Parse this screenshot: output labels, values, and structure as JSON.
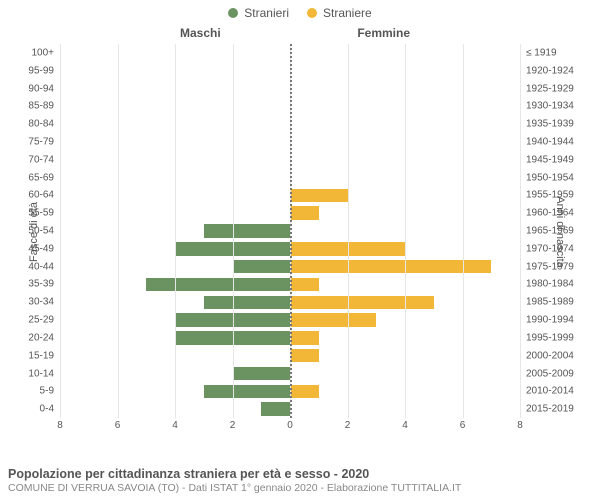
{
  "legend": {
    "male_label": "Stranieri",
    "female_label": "Straniere"
  },
  "headers": {
    "male": "Maschi",
    "female": "Femmine"
  },
  "y_labels": {
    "left": "Fasce di età",
    "right": "Anni di nascita"
  },
  "chart": {
    "type": "population-pyramid",
    "male_color": "#6b9362",
    "female_color": "#f2b736",
    "grid_color": "#e6e6e6",
    "center_line_color": "#777777",
    "background_color": "#ffffff",
    "text_color": "#555555",
    "x_max": 8,
    "x_ticks": [
      8,
      6,
      4,
      2,
      0,
      2,
      4,
      6,
      8
    ],
    "bar_height_pct": 76,
    "rows": [
      {
        "age": "100+",
        "year": "≤ 1919",
        "male": 0,
        "female": 0
      },
      {
        "age": "95-99",
        "year": "1920-1924",
        "male": 0,
        "female": 0
      },
      {
        "age": "90-94",
        "year": "1925-1929",
        "male": 0,
        "female": 0
      },
      {
        "age": "85-89",
        "year": "1930-1934",
        "male": 0,
        "female": 0
      },
      {
        "age": "80-84",
        "year": "1935-1939",
        "male": 0,
        "female": 0
      },
      {
        "age": "75-79",
        "year": "1940-1944",
        "male": 0,
        "female": 0
      },
      {
        "age": "70-74",
        "year": "1945-1949",
        "male": 0,
        "female": 0
      },
      {
        "age": "65-69",
        "year": "1950-1954",
        "male": 0,
        "female": 0
      },
      {
        "age": "60-64",
        "year": "1955-1959",
        "male": 0,
        "female": 2
      },
      {
        "age": "55-59",
        "year": "1960-1964",
        "male": 0,
        "female": 1
      },
      {
        "age": "50-54",
        "year": "1965-1969",
        "male": 3,
        "female": 0
      },
      {
        "age": "45-49",
        "year": "1970-1974",
        "male": 4,
        "female": 4
      },
      {
        "age": "40-44",
        "year": "1975-1979",
        "male": 2,
        "female": 7
      },
      {
        "age": "35-39",
        "year": "1980-1984",
        "male": 5,
        "female": 1
      },
      {
        "age": "30-34",
        "year": "1985-1989",
        "male": 3,
        "female": 5
      },
      {
        "age": "25-29",
        "year": "1990-1994",
        "male": 4,
        "female": 3
      },
      {
        "age": "20-24",
        "year": "1995-1999",
        "male": 4,
        "female": 1
      },
      {
        "age": "15-19",
        "year": "2000-2004",
        "male": 0,
        "female": 1
      },
      {
        "age": "10-14",
        "year": "2005-2009",
        "male": 2,
        "female": 0
      },
      {
        "age": "5-9",
        "year": "2010-2014",
        "male": 3,
        "female": 1
      },
      {
        "age": "0-4",
        "year": "2015-2019",
        "male": 1,
        "female": 0
      }
    ]
  },
  "caption": {
    "title": "Popolazione per cittadinanza straniera per età e sesso - 2020",
    "subtitle": "COMUNE DI VERRUA SAVOIA (TO) - Dati ISTAT 1° gennaio 2020 - Elaborazione TUTTITALIA.IT"
  }
}
